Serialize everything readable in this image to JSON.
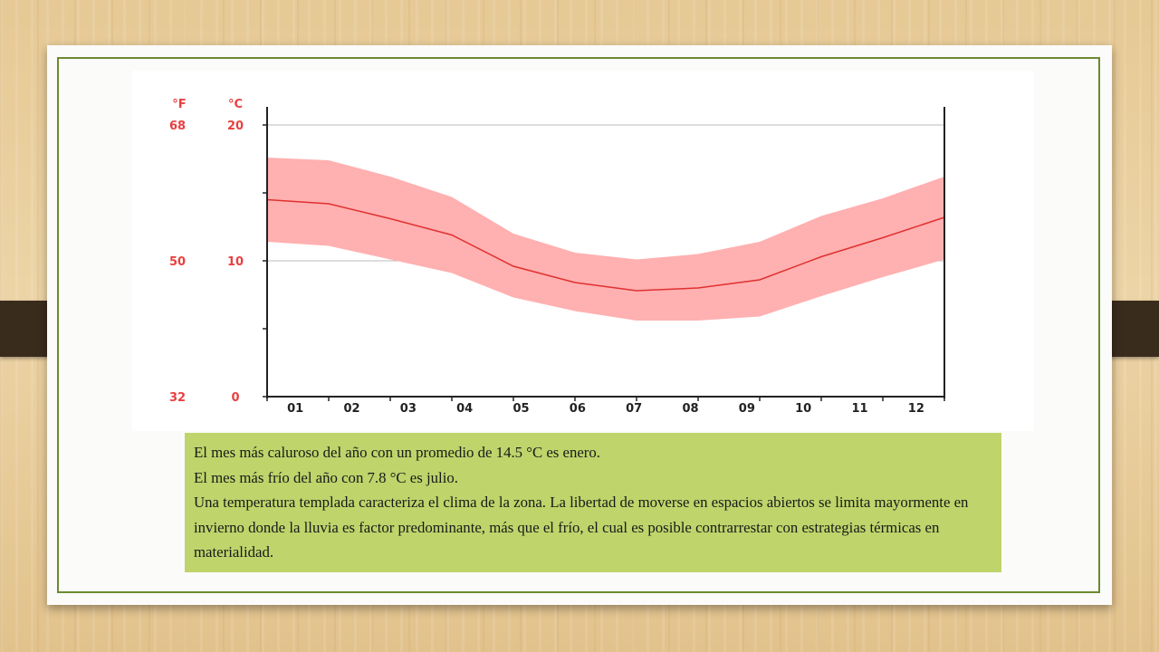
{
  "chart_data": {
    "type": "area",
    "units_left": "°F",
    "units_right": "°C",
    "y_ticks_c": [
      "20",
      "10",
      "0"
    ],
    "y_ticks_f": [
      "68",
      "50",
      "32"
    ],
    "ylim": [
      0,
      20
    ],
    "categories": [
      "01",
      "02",
      "03",
      "04",
      "05",
      "06",
      "07",
      "08",
      "09",
      "10",
      "11",
      "12"
    ],
    "series": [
      {
        "values": [
          14.5,
          14.2,
          13.1,
          11.9,
          9.6,
          8.4,
          7.8,
          8.0,
          8.6,
          10.3,
          11.7,
          13.2
        ]
      }
    ],
    "band": {
      "upper": [
        17.6,
        17.4,
        16.2,
        14.7,
        12.0,
        10.6,
        10.1,
        10.5,
        11.4,
        13.3,
        14.6,
        16.2
      ],
      "lower": [
        11.4,
        11.1,
        10.1,
        9.1,
        7.3,
        6.3,
        5.6,
        5.6,
        5.9,
        7.4,
        8.8,
        10.1
      ]
    },
    "colors": {
      "band": "#ffb0b0",
      "line": "#e03030",
      "axis_labels": "#e84040",
      "grid": "#bbbbbb"
    }
  },
  "notes": [
    "El mes más caluroso del año con un promedio de 14.5 °C es enero.",
    "El mes más frío del año con 7.8 °C es julio.",
    "Una temperatura templada caracteriza el clima de la zona. La libertad de moverse en espacios abiertos se limita mayormente en invierno donde la lluvia es factor predominante, más que el frío, el cual es posible contrarrestar con estrategias térmicas en materialidad."
  ],
  "colors": {
    "frame": "#6b8a2e",
    "note_bg": "#bfd46b"
  }
}
